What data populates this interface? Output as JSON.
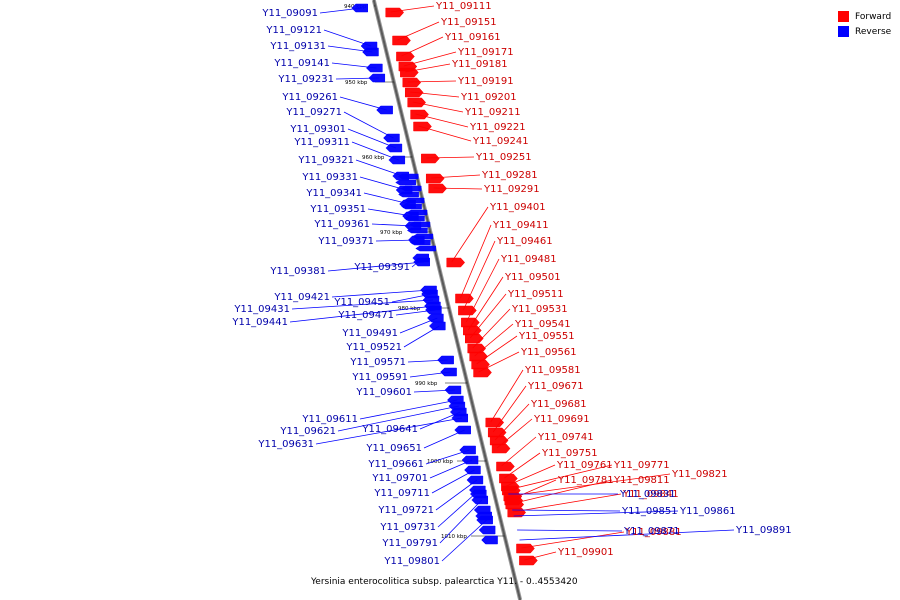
{
  "legend": {
    "forward_label": "Forward",
    "reverse_label": "Reverse",
    "forward_color": "#ff0000",
    "reverse_color": "#0000ff"
  },
  "caption": "Yersinia enterocolitica subsp. palearctica Y11. - 0..4553420",
  "scale_ticks": [
    "940 kbp",
    "950 kbp",
    "960 kbp",
    "970 kbp",
    "980 kbp",
    "990 kbp",
    "1000 kbp",
    "1010 kbp"
  ],
  "forward_genes": [
    "Y11_09111",
    "Y11_09151",
    "Y11_09161",
    "Y11_09171",
    "Y11_09181",
    "Y11_09191",
    "Y11_09201",
    "Y11_09211",
    "Y11_09221",
    "Y11_09241",
    "Y11_09251",
    "Y11_09281",
    "Y11_09291",
    "Y11_09401",
    "Y11_09411",
    "Y11_09461",
    "Y11_09481",
    "Y11_09501",
    "Y11_09511",
    "Y11_09531",
    "Y11_09541",
    "Y11_09551",
    "Y11_09561",
    "Y11_09581",
    "Y11_09671",
    "Y11_09681",
    "Y11_09691",
    "Y11_09741",
    "Y11_09751",
    "Y11_09761",
    "Y11_09771",
    "Y11_09821",
    "Y11_09781",
    "Y11_09811",
    "Y11_09841",
    "Y11_09881",
    "Y11_09901"
  ],
  "reverse_genes": [
    "Y11_09091",
    "Y11_09121",
    "Y11_09131",
    "Y11_09141",
    "Y11_09231",
    "Y11_09261",
    "Y11_09271",
    "Y11_09301",
    "Y11_09311",
    "Y11_09321",
    "Y11_09331",
    "Y11_09341",
    "Y11_09351",
    "Y11_09361",
    "Y11_09371",
    "Y11_09381",
    "Y11_09391",
    "Y11_09421",
    "Y11_09451",
    "Y11_09431",
    "Y11_09441",
    "Y11_09471",
    "Y11_09491",
    "Y11_09521",
    "Y11_09571",
    "Y11_09591",
    "Y11_09601",
    "Y11_09611",
    "Y11_09621",
    "Y11_09641",
    "Y11_09631",
    "Y11_09651",
    "Y11_09661",
    "Y11_09701",
    "Y11_09711",
    "Y11_09721",
    "Y11_09731",
    "Y11_09791",
    "Y11_09801",
    "Y11_09831",
    "Y11_09851",
    "Y11_09861",
    "Y11_09871",
    "Y11_09891"
  ]
}
